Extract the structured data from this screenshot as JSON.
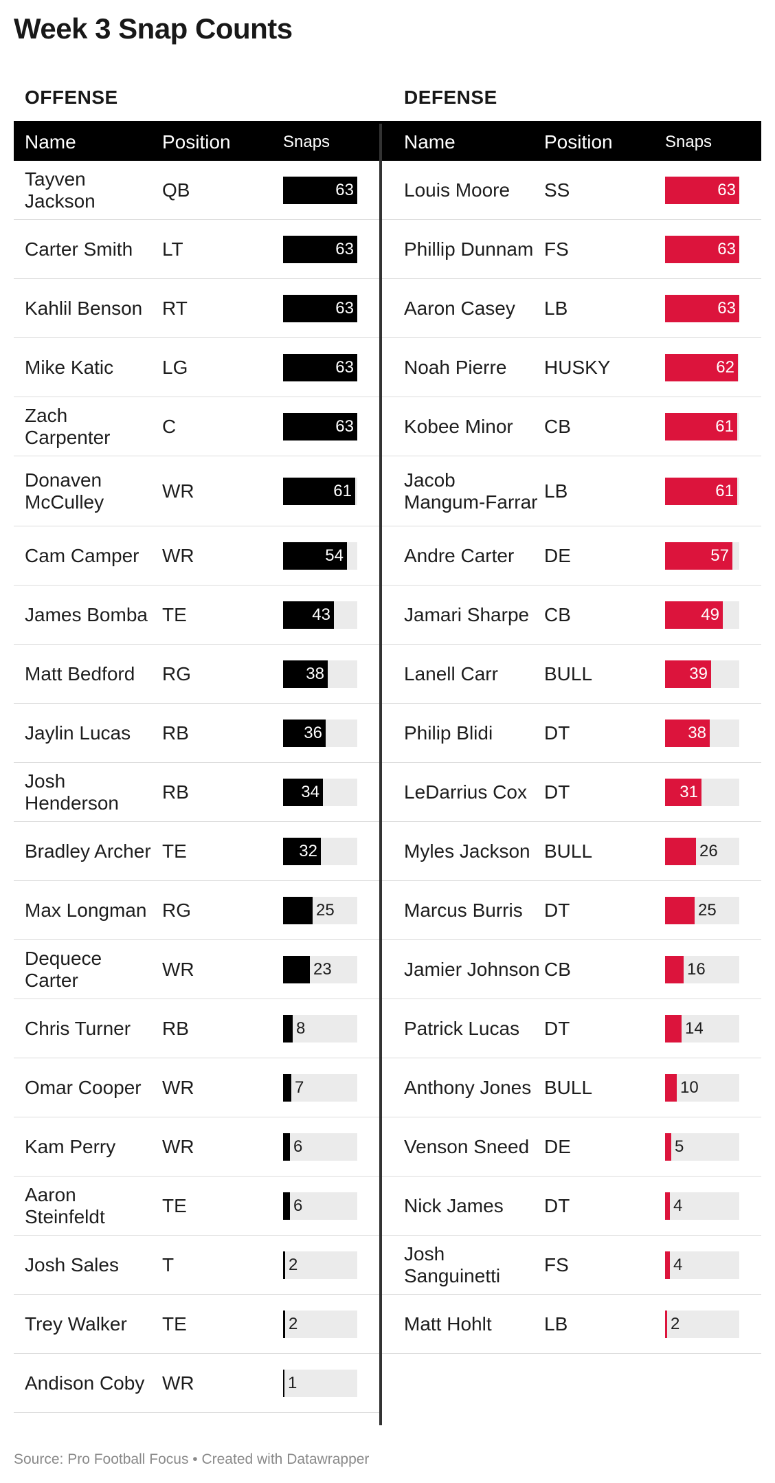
{
  "title": "Week 3 Snap Counts",
  "footer": "Source: Pro Football Focus • Created with Datawrapper",
  "colors": {
    "offense_bar": "#000000",
    "defense_bar": "#dc143c",
    "track": "#ebebeb"
  },
  "chart_data": {
    "type": "table",
    "columns": [
      "Name",
      "Position",
      "Snaps"
    ],
    "snap_max": 63,
    "offense": {
      "title": "OFFENSE",
      "headers": {
        "name": "Name",
        "position": "Position",
        "snaps": "Snaps"
      },
      "rows": [
        {
          "name": "Tayven Jackson",
          "position": "QB",
          "snaps": 63
        },
        {
          "name": "Carter Smith",
          "position": "LT",
          "snaps": 63
        },
        {
          "name": "Kahlil Benson",
          "position": "RT",
          "snaps": 63
        },
        {
          "name": "Mike Katic",
          "position": "LG",
          "snaps": 63
        },
        {
          "name": "Zach Carpenter",
          "position": "C",
          "snaps": 63
        },
        {
          "name": "Donaven McCulley",
          "position": "WR",
          "snaps": 61
        },
        {
          "name": "Cam Camper",
          "position": "WR",
          "snaps": 54
        },
        {
          "name": "James Bomba",
          "position": "TE",
          "snaps": 43
        },
        {
          "name": "Matt Bedford",
          "position": "RG",
          "snaps": 38
        },
        {
          "name": "Jaylin Lucas",
          "position": "RB",
          "snaps": 36
        },
        {
          "name": "Josh Henderson",
          "position": "RB",
          "snaps": 34
        },
        {
          "name": "Bradley Archer",
          "position": "TE",
          "snaps": 32
        },
        {
          "name": "Max Longman",
          "position": "RG",
          "snaps": 25
        },
        {
          "name": "Dequece Carter",
          "position": "WR",
          "snaps": 23
        },
        {
          "name": "Chris Turner",
          "position": "RB",
          "snaps": 8
        },
        {
          "name": "Omar Cooper",
          "position": "WR",
          "snaps": 7
        },
        {
          "name": "Kam Perry",
          "position": "WR",
          "snaps": 6
        },
        {
          "name": "Aaron Steinfeldt",
          "position": "TE",
          "snaps": 6
        },
        {
          "name": "Josh Sales",
          "position": "T",
          "snaps": 2
        },
        {
          "name": "Trey Walker",
          "position": "TE",
          "snaps": 2
        },
        {
          "name": "Andison Coby",
          "position": "WR",
          "snaps": 1
        }
      ]
    },
    "defense": {
      "title": "DEFENSE",
      "headers": {
        "name": "Name",
        "position": "Position",
        "snaps": "Snaps"
      },
      "rows": [
        {
          "name": "Louis Moore",
          "position": "SS",
          "snaps": 63
        },
        {
          "name": "Phillip Dunnam",
          "position": "FS",
          "snaps": 63
        },
        {
          "name": "Aaron Casey",
          "position": "LB",
          "snaps": 63
        },
        {
          "name": "Noah Pierre",
          "position": "HUSKY",
          "snaps": 62
        },
        {
          "name": "Kobee Minor",
          "position": "CB",
          "snaps": 61
        },
        {
          "name": "Jacob Mangum-Farrar",
          "position": "LB",
          "snaps": 61
        },
        {
          "name": "Andre Carter",
          "position": "DE",
          "snaps": 57
        },
        {
          "name": "Jamari Sharpe",
          "position": "CB",
          "snaps": 49
        },
        {
          "name": "Lanell Carr",
          "position": "BULL",
          "snaps": 39
        },
        {
          "name": "Philip Blidi",
          "position": "DT",
          "snaps": 38
        },
        {
          "name": "LeDarrius Cox",
          "position": "DT",
          "snaps": 31
        },
        {
          "name": "Myles Jackson",
          "position": "BULL",
          "snaps": 26
        },
        {
          "name": "Marcus Burris",
          "position": "DT",
          "snaps": 25
        },
        {
          "name": "Jamier Johnson",
          "position": "CB",
          "snaps": 16
        },
        {
          "name": "Patrick Lucas",
          "position": "DT",
          "snaps": 14
        },
        {
          "name": "Anthony Jones",
          "position": "BULL",
          "snaps": 10
        },
        {
          "name": "Venson Sneed",
          "position": "DE",
          "snaps": 5
        },
        {
          "name": "Nick James",
          "position": "DT",
          "snaps": 4
        },
        {
          "name": "Josh Sanguinetti",
          "position": "FS",
          "snaps": 4
        },
        {
          "name": "Matt Hohlt",
          "position": "LB",
          "snaps": 2
        }
      ]
    }
  }
}
